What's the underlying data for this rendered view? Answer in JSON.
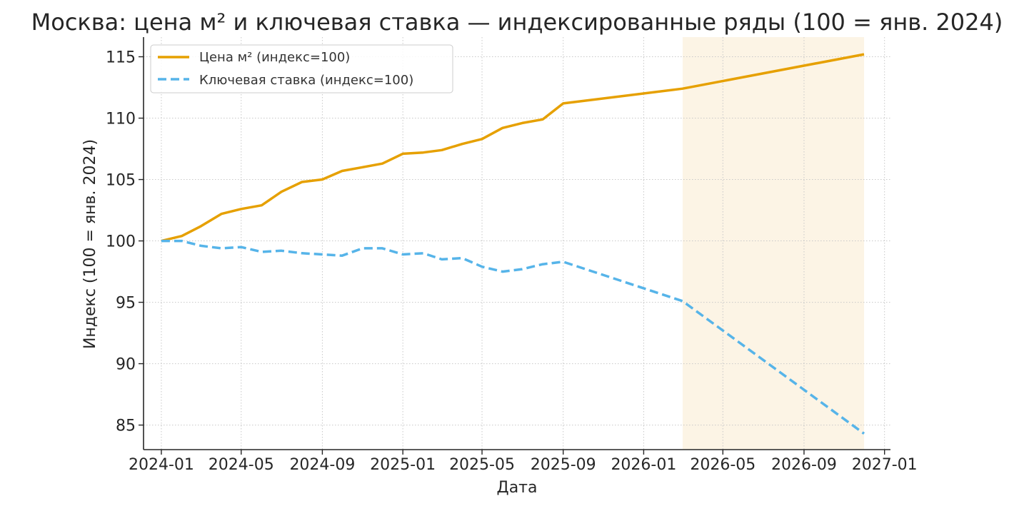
{
  "chart_data": {
    "type": "line",
    "title": "Москва: цена м² и ключевая ставка — индексированные ряды (100 = янв. 2024)",
    "xlabel": "Дата",
    "ylabel": "Индекс (100 = янв. 2024)",
    "x_range": [
      "2023-12-05",
      "2027-01-10"
    ],
    "ylim": [
      83.0,
      116.6
    ],
    "x_ticks": [
      {
        "date": "2024-01-01",
        "label": "2024-01"
      },
      {
        "date": "2024-05-01",
        "label": "2024-05"
      },
      {
        "date": "2024-09-01",
        "label": "2024-09"
      },
      {
        "date": "2025-01-01",
        "label": "2025-01"
      },
      {
        "date": "2025-05-01",
        "label": "2025-05"
      },
      {
        "date": "2025-09-01",
        "label": "2025-09"
      },
      {
        "date": "2026-01-01",
        "label": "2026-01"
      },
      {
        "date": "2026-05-01",
        "label": "2026-05"
      },
      {
        "date": "2026-09-01",
        "label": "2026-09"
      },
      {
        "date": "2027-01-01",
        "label": "2027-01"
      }
    ],
    "y_ticks": [
      85,
      90,
      95,
      100,
      105,
      110,
      115
    ],
    "grid": true,
    "legend_position": "top-left",
    "forecast_span": {
      "start": "2026-03-01",
      "end": "2026-12-01",
      "color": "#fcf4e5"
    },
    "series": [
      {
        "name": "Цена м² (индекс=100)",
        "color": "#e6a000",
        "style": "solid",
        "points": [
          [
            "2024-01-01",
            100.0
          ],
          [
            "2024-02-01",
            100.4
          ],
          [
            "2024-03-01",
            101.2
          ],
          [
            "2024-04-01",
            102.2
          ],
          [
            "2024-05-01",
            102.6
          ],
          [
            "2024-06-01",
            102.9
          ],
          [
            "2024-07-01",
            104.0
          ],
          [
            "2024-08-01",
            104.8
          ],
          [
            "2024-09-01",
            105.0
          ],
          [
            "2024-10-01",
            105.7
          ],
          [
            "2024-11-01",
            106.0
          ],
          [
            "2024-12-01",
            106.3
          ],
          [
            "2025-01-01",
            107.1
          ],
          [
            "2025-02-01",
            107.2
          ],
          [
            "2025-03-01",
            107.4
          ],
          [
            "2025-04-01",
            107.9
          ],
          [
            "2025-05-01",
            108.3
          ],
          [
            "2025-06-01",
            109.2
          ],
          [
            "2025-07-01",
            109.6
          ],
          [
            "2025-08-01",
            109.9
          ],
          [
            "2025-09-01",
            111.2
          ],
          [
            "2026-03-01",
            112.4
          ],
          [
            "2026-12-01",
            115.2
          ]
        ]
      },
      {
        "name": "Ключевая ставка (индекс=100)",
        "color": "#56b4e9",
        "style": "dashed",
        "points": [
          [
            "2024-01-01",
            100.0
          ],
          [
            "2024-02-01",
            100.0
          ],
          [
            "2024-03-01",
            99.6
          ],
          [
            "2024-04-01",
            99.4
          ],
          [
            "2024-05-01",
            99.5
          ],
          [
            "2024-06-01",
            99.1
          ],
          [
            "2024-07-01",
            99.2
          ],
          [
            "2024-08-01",
            99.0
          ],
          [
            "2024-09-01",
            98.9
          ],
          [
            "2024-10-01",
            98.8
          ],
          [
            "2024-11-01",
            99.4
          ],
          [
            "2024-12-01",
            99.4
          ],
          [
            "2025-01-01",
            98.9
          ],
          [
            "2025-02-01",
            99.0
          ],
          [
            "2025-03-01",
            98.5
          ],
          [
            "2025-04-01",
            98.6
          ],
          [
            "2025-05-01",
            97.9
          ],
          [
            "2025-06-01",
            97.5
          ],
          [
            "2025-07-01",
            97.7
          ],
          [
            "2025-08-01",
            98.1
          ],
          [
            "2025-09-01",
            98.3
          ],
          [
            "2026-03-01",
            95.1
          ],
          [
            "2026-12-01",
            84.3
          ]
        ]
      }
    ]
  }
}
